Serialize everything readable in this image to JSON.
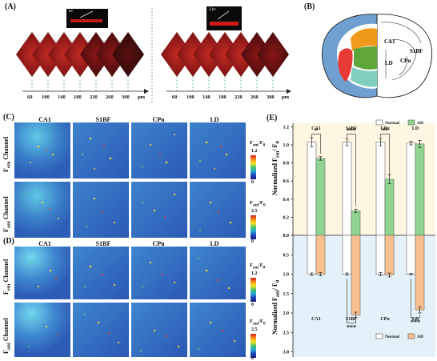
{
  "panel_labels": [
    "(A)",
    "(B)",
    "(C)",
    "(D)",
    "(E)"
  ],
  "panel_a": {
    "insets": [
      "hv",
      "2 hv"
    ],
    "ticks": [
      "60",
      "100",
      "140",
      "180",
      "220",
      "260",
      "300"
    ],
    "unit": "μm"
  },
  "panel_b": {
    "regions": [
      "CA1",
      "S1BF",
      "CPu",
      "LD"
    ]
  },
  "columns": [
    "CA1",
    "S1BF",
    "CPu",
    "LD"
  ],
  "channels": {
    "em": "F",
    "em_sub": "em",
    "em_suffix": " Channel",
    "ani": "F",
    "ani_sub": "ani",
    "ani_suffix": " Channel"
  },
  "colorbars": {
    "top": {
      "label": "F",
      "label_sub": "em",
      "label_rest": "/F",
      "label_rest_sub": "0",
      "max": "1.2",
      "min": "0"
    },
    "bottom": {
      "label": "F",
      "label_sub": "ani",
      "label_rest": "/F",
      "label_rest_sub": "0",
      "max": "2.5",
      "min": "0"
    }
  },
  "colors": {
    "normal_fill": "#ffffff",
    "ad_top": "#8fd48f",
    "ad_bottom": "#f9c08f",
    "bg_top": "#fdf6e2",
    "bg_bottom": "#e4f1f8",
    "region_ca1": "#e63a35",
    "region_s1bf": "#ef9a1a",
    "region_cpu": "#7fcfbf",
    "region_ld": "#5fa63a",
    "cortex": "#6fa0d0"
  },
  "chart_data": {
    "type": "bar",
    "categories": [
      "CA1",
      "S1BF",
      "CPu",
      "LD"
    ],
    "top": {
      "ylabel": "Normalized F",
      "ylabel_sub_1": "em",
      "ylabel_mid": "/ F",
      "ylabel_sub_2": "0",
      "ylim": [
        0,
        1.2
      ],
      "ticks": [
        "1.2",
        "1.0",
        "0.8",
        "0.6",
        "0.4",
        "0.2",
        "0.0"
      ],
      "series": [
        {
          "name": "Normal",
          "values": [
            1.03,
            1.03,
            1.03,
            1.02
          ],
          "errors": [
            0.05,
            0.04,
            0.04,
            0.02
          ]
        },
        {
          "name": "AD",
          "values": [
            0.85,
            0.27,
            0.62,
            1.01
          ],
          "errors": [
            0.02,
            0.02,
            0.05,
            0.04
          ]
        }
      ],
      "significance": [
        "*",
        "***",
        "**",
        ""
      ]
    },
    "bottom": {
      "ylabel": "Normalized F",
      "ylabel_sub_1": "ani",
      "ylabel_mid": "/ F",
      "ylabel_sub_2": "0",
      "ylim": [
        0,
        3.0
      ],
      "ticks": [
        "0.5",
        "1.0",
        "1.5",
        "2.0",
        "2.5",
        "3.0"
      ],
      "series": [
        {
          "name": "Normal",
          "values": [
            1.0,
            1.0,
            1.0,
            1.0
          ],
          "errors": [
            0.03,
            0.03,
            0.04,
            0.02
          ]
        },
        {
          "name": "AD",
          "values": [
            1.0,
            2.05,
            1.02,
            1.92
          ],
          "errors": [
            0.04,
            0.07,
            0.05,
            0.08
          ]
        }
      ],
      "significance": [
        "",
        "***",
        "",
        "***"
      ]
    }
  }
}
